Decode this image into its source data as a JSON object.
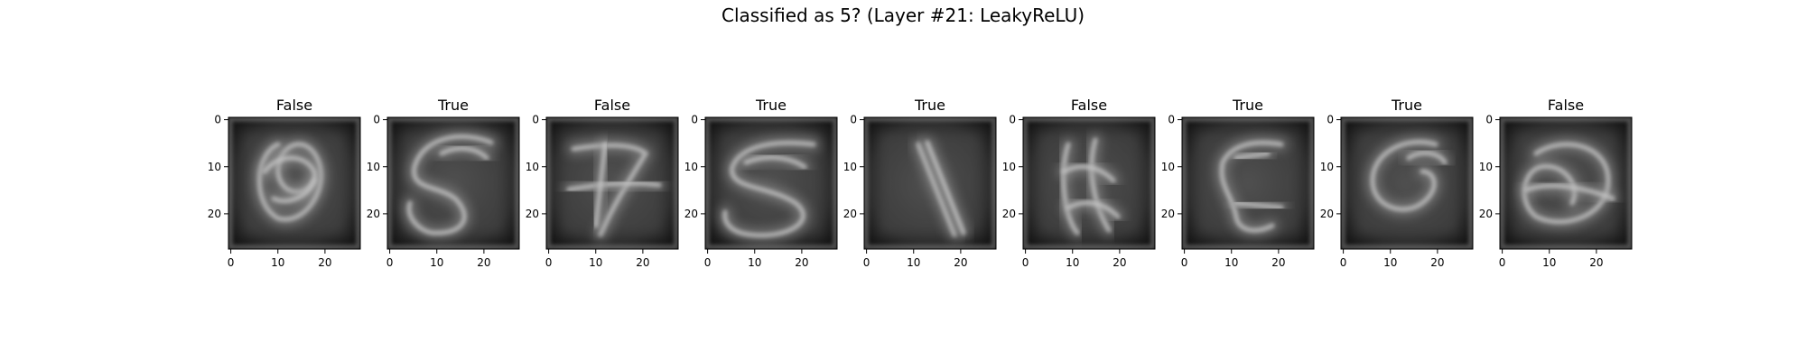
{
  "figure": {
    "title": "Classified as 5? (Layer #21: LeakyReLU)",
    "colormap": "gray",
    "background": "#ffffff"
  },
  "chart_data": [
    {
      "type": "heatmap",
      "title": "False",
      "xticks": [
        0,
        10,
        20
      ],
      "yticks": [
        0,
        10,
        20
      ],
      "xlim": [
        -0.5,
        27.5
      ],
      "ylim": [
        27.5,
        -0.5
      ],
      "image_size": [
        28,
        28
      ],
      "content": "zero-like loop"
    },
    {
      "type": "heatmap",
      "title": "True",
      "xticks": [
        0,
        10,
        20
      ],
      "yticks": [
        0,
        10,
        20
      ],
      "xlim": [
        -0.5,
        27.5
      ],
      "ylim": [
        27.5,
        -0.5
      ],
      "image_size": [
        28,
        28
      ],
      "content": "curved 5 stroke"
    },
    {
      "type": "heatmap",
      "title": "False",
      "xticks": [
        0,
        10,
        20
      ],
      "yticks": [
        0,
        10,
        20
      ],
      "xlim": [
        -0.5,
        27.5
      ],
      "ylim": [
        27.5,
        -0.5
      ],
      "image_size": [
        28,
        28
      ],
      "content": "seven-like crossed stroke"
    },
    {
      "type": "heatmap",
      "title": "True",
      "xticks": [
        0,
        10,
        20
      ],
      "yticks": [
        0,
        10,
        20
      ],
      "xlim": [
        -0.5,
        27.5
      ],
      "ylim": [
        27.5,
        -0.5
      ],
      "image_size": [
        28,
        28
      ],
      "content": "s-shaped 5"
    },
    {
      "type": "heatmap",
      "title": "True",
      "xticks": [
        0,
        10,
        20
      ],
      "yticks": [
        0,
        10,
        20
      ],
      "xlim": [
        -0.5,
        27.5
      ],
      "ylim": [
        27.5,
        -0.5
      ],
      "image_size": [
        28,
        28
      ],
      "content": "diagonal bar"
    },
    {
      "type": "heatmap",
      "title": "False",
      "xticks": [
        0,
        10,
        20
      ],
      "yticks": [
        0,
        10,
        20
      ],
      "xlim": [
        -0.5,
        27.5
      ],
      "ylim": [
        27.5,
        -0.5
      ],
      "image_size": [
        28,
        28
      ],
      "content": "vertical loops"
    },
    {
      "type": "heatmap",
      "title": "True",
      "xticks": [
        0,
        10,
        20
      ],
      "yticks": [
        0,
        10,
        20
      ],
      "xlim": [
        -0.5,
        27.5
      ],
      "ylim": [
        27.5,
        -0.5
      ],
      "image_size": [
        28,
        28
      ],
      "content": "angular 5"
    },
    {
      "type": "heatmap",
      "title": "True",
      "xticks": [
        0,
        10,
        20
      ],
      "yticks": [
        0,
        10,
        20
      ],
      "xlim": [
        -0.5,
        27.5
      ],
      "ylim": [
        27.5,
        -0.5
      ],
      "image_size": [
        28,
        28
      ],
      "content": "hooked stroke"
    },
    {
      "type": "heatmap",
      "title": "False",
      "xticks": [
        0,
        10,
        20
      ],
      "yticks": [
        0,
        10,
        20
      ],
      "xlim": [
        -0.5,
        27.5
      ],
      "ylim": [
        27.5,
        -0.5
      ],
      "image_size": [
        28,
        28
      ],
      "content": "blob loop"
    }
  ]
}
